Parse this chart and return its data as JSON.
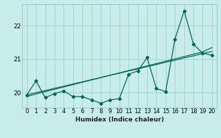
{
  "xlabel": "Humidex (Indice chaleur)",
  "bg_color": "#c8ece8",
  "grid_color": "#a0d4ce",
  "line_color": "#006655",
  "x": [
    0,
    1,
    2,
    3,
    4,
    5,
    6,
    7,
    8,
    9,
    10,
    11,
    12,
    13,
    14,
    15,
    16,
    17,
    18,
    19,
    20
  ],
  "y_main": [
    19.93,
    20.35,
    19.85,
    19.97,
    20.05,
    19.88,
    19.88,
    19.78,
    19.68,
    19.78,
    19.82,
    20.55,
    20.65,
    21.05,
    20.12,
    20.03,
    21.6,
    22.45,
    21.45,
    21.18,
    21.12
  ],
  "y_line1": [
    19.93,
    20.0,
    20.06,
    20.13,
    20.19,
    20.26,
    20.32,
    20.39,
    20.45,
    20.52,
    20.58,
    20.65,
    20.71,
    20.78,
    20.84,
    20.91,
    20.97,
    21.04,
    21.1,
    21.17,
    21.23
  ],
  "y_line2": [
    19.88,
    19.96,
    20.03,
    20.1,
    20.17,
    20.24,
    20.31,
    20.38,
    20.45,
    20.52,
    20.59,
    20.66,
    20.73,
    20.8,
    20.87,
    20.94,
    21.01,
    21.08,
    21.15,
    21.22,
    21.35
  ],
  "ylim": [
    19.55,
    22.65
  ],
  "xlim": [
    -0.5,
    20.5
  ],
  "yticks": [
    20,
    21,
    22
  ],
  "xticks": [
    0,
    1,
    2,
    3,
    4,
    5,
    6,
    7,
    8,
    9,
    10,
    11,
    12,
    13,
    14,
    15,
    16,
    17,
    18,
    19,
    20
  ],
  "marker": "D",
  "markersize": 2.2,
  "linewidth": 0.9,
  "tick_fontsize": 6.0,
  "xlabel_fontsize": 6.5
}
